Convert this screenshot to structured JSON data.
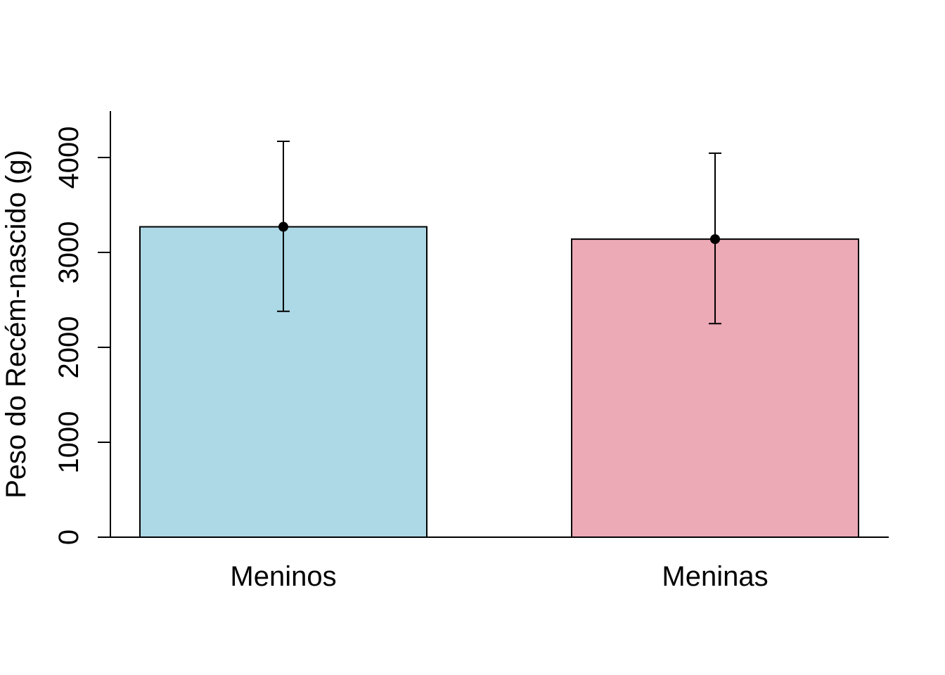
{
  "chart_data": {
    "type": "bar",
    "title": "",
    "xlabel": "",
    "ylabel": "Peso do Recém-nascido (g)",
    "ylim": [
      0,
      4500
    ],
    "yticks": [
      0,
      1000,
      2000,
      3000,
      4000
    ],
    "grid": false,
    "categories": [
      "Meninos",
      "Meninas"
    ],
    "values": [
      3270,
      3140
    ],
    "error_bars": [
      {
        "lower": 2380,
        "upper": 4170
      },
      {
        "lower": 2250,
        "upper": 4045
      }
    ],
    "colors": [
      "#ADD8E6",
      "#ECA9B6"
    ],
    "marker_color": "#000000"
  }
}
